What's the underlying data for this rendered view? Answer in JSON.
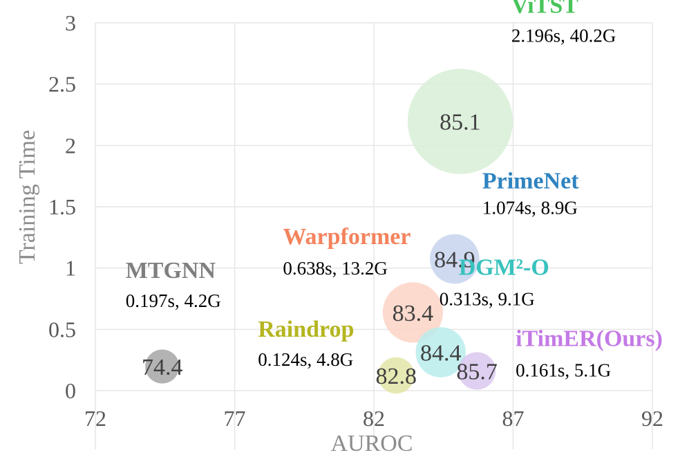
{
  "chart_data": {
    "type": "scatter",
    "subtype": "bubble",
    "xlabel": "AUROC",
    "ylabel": "Training Time",
    "xlim": [
      72,
      92
    ],
    "ylim": [
      0,
      3
    ],
    "xticks": [
      "72",
      "77",
      "82",
      "87",
      "92"
    ],
    "yticks": [
      "0",
      "0.5",
      "1",
      "1.5",
      "2",
      "2.5",
      "3"
    ],
    "grid": true,
    "points": [
      {
        "name": "MTGNN",
        "x": 74.4,
        "y": 0.197,
        "value_label": "74.4",
        "stats": "0.197s, 4.2G",
        "memory_gb": 4.2,
        "color": "#a6a6a6",
        "name_color": "#7f7f7f"
      },
      {
        "name": "Raindrop",
        "x": 82.8,
        "y": 0.124,
        "value_label": "82.8",
        "stats": "0.124s, 4.8G",
        "memory_gb": 4.8,
        "color": "#e2e5a6",
        "name_color": "#b5b520"
      },
      {
        "name": "DGM²-O",
        "x": 84.4,
        "y": 0.313,
        "value_label": "84.4",
        "stats": "0.313s, 9.1G",
        "memory_gb": 9.1,
        "color": "#b9ecec",
        "name_color": "#38c2bd"
      },
      {
        "name": "iTimER(Ours)",
        "x": 85.7,
        "y": 0.161,
        "value_label": "85.7",
        "stats": "0.161s, 5.1G",
        "memory_gb": 5.1,
        "color": "#d9c8f0",
        "name_color": "#c47ae6"
      },
      {
        "name": "Warpformer",
        "x": 83.4,
        "y": 0.638,
        "value_label": "83.4",
        "stats": "0.638s, 13.2G",
        "memory_gb": 13.2,
        "color": "#fbd4c4",
        "name_color": "#f4835d"
      },
      {
        "name": "PrimeNet",
        "x": 84.9,
        "y": 1.074,
        "value_label": "84.9",
        "stats": "1.074s, 8.9G",
        "memory_gb": 8.9,
        "color": "#c7d4ee",
        "name_color": "#2f83c0"
      },
      {
        "name": "ViTST",
        "x": 85.1,
        "y": 2.196,
        "value_label": "85.1",
        "stats": "2.196s, 40.2G",
        "memory_gb": 40.2,
        "color": "#d8eed7",
        "name_color": "#48c45a"
      }
    ]
  }
}
